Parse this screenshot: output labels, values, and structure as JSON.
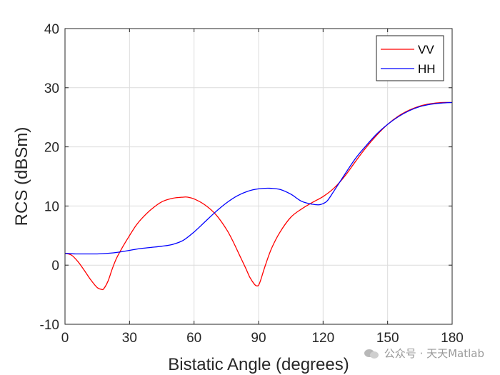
{
  "chart_data": {
    "type": "line",
    "xlabel": "Bistatic Angle (degrees)",
    "ylabel": "RCS (dBSm)",
    "xlim": [
      0,
      180
    ],
    "ylim": [
      -10,
      40
    ],
    "xticks": [
      0,
      30,
      60,
      90,
      120,
      150,
      180
    ],
    "yticks": [
      -10,
      0,
      10,
      20,
      30,
      40
    ],
    "grid": true,
    "legend_position": "top-right",
    "series": [
      {
        "name": "VV",
        "color": "#ff0000",
        "x": [
          0,
          3,
          6,
          9,
          12,
          15,
          17,
          18,
          20,
          22,
          24,
          27,
          30,
          33,
          36,
          40,
          45,
          50,
          55,
          57,
          60,
          65,
          70,
          75,
          78,
          81,
          84,
          86,
          88,
          89,
          90,
          91,
          93,
          96,
          100,
          105,
          110,
          115,
          120,
          125,
          130,
          135,
          140,
          145,
          150,
          155,
          160,
          165,
          170,
          175,
          180
        ],
        "y": [
          2.0,
          1.7,
          0.6,
          -0.9,
          -2.5,
          -3.8,
          -4.1,
          -4.0,
          -2.7,
          -0.6,
          1.2,
          3.2,
          5.0,
          6.7,
          8.0,
          9.4,
          10.7,
          11.3,
          11.5,
          11.5,
          11.2,
          10.2,
          8.6,
          6.1,
          4.1,
          1.8,
          -0.5,
          -2.1,
          -3.2,
          -3.5,
          -3.4,
          -2.5,
          -0.2,
          2.8,
          5.6,
          8.1,
          9.5,
          10.6,
          11.6,
          13.0,
          15.0,
          17.5,
          19.9,
          22.0,
          23.8,
          25.2,
          26.2,
          26.9,
          27.3,
          27.5,
          27.5
        ]
      },
      {
        "name": "HH",
        "color": "#0000ff",
        "x": [
          0,
          5,
          10,
          15,
          20,
          25,
          30,
          35,
          40,
          45,
          50,
          55,
          60,
          65,
          70,
          75,
          80,
          85,
          90,
          95,
          100,
          105,
          110,
          115,
          118,
          120,
          122,
          125,
          130,
          135,
          140,
          145,
          150,
          155,
          160,
          165,
          170,
          175,
          180
        ],
        "y": [
          2.0,
          1.9,
          1.9,
          1.9,
          2.0,
          2.2,
          2.5,
          2.8,
          3.0,
          3.2,
          3.5,
          4.2,
          5.6,
          7.3,
          9.0,
          10.5,
          11.7,
          12.5,
          12.9,
          13.0,
          12.8,
          12.0,
          10.8,
          10.3,
          10.2,
          10.4,
          10.9,
          12.5,
          15.3,
          18.0,
          20.2,
          22.2,
          23.8,
          25.1,
          26.1,
          26.8,
          27.2,
          27.4,
          27.5
        ]
      }
    ]
  },
  "watermark": {
    "text": "公众号 · 天天Matlab",
    "icon": "wechat-icon"
  }
}
